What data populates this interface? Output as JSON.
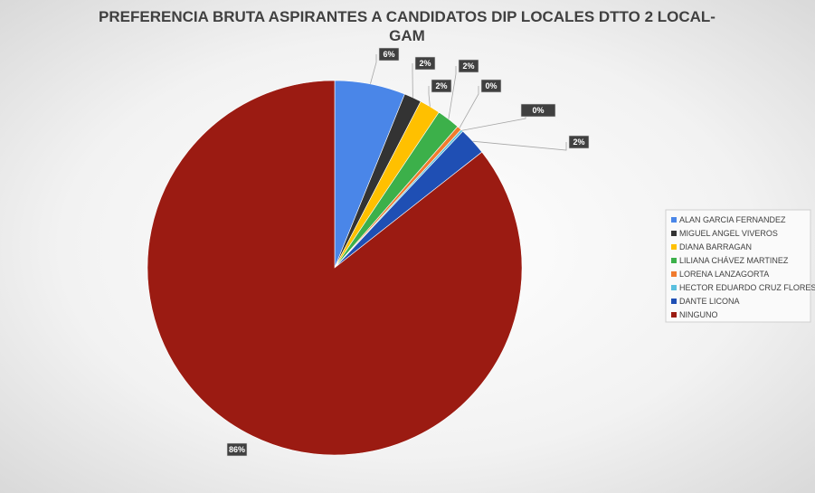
{
  "chart_data": {
    "type": "pie",
    "title": "PREFERENCIA BRUTA ASPIRANTES A CANDIDATOS DIP LOCALES DTTO 2 LOCAL-GAM",
    "categories": [
      "ALAN GARCIA FERNANDEZ",
      "MIGUEL ANGEL VIVEROS",
      "DIANA BARRAGAN",
      "LILIANA CHÁVEZ MARTINEZ",
      "LORENA LANZAGORTA",
      "HECTOR EDUARDO CRUZ FLORES",
      "DANTE LICONA",
      "NINGUNO"
    ],
    "values": [
      6.1,
      1.5,
      1.8,
      2.0,
      0.4,
      0.2,
      2.4,
      85.6
    ],
    "value_labels": [
      "6%",
      "2%",
      "2%",
      "2%",
      "0%",
      "0%",
      "2%",
      "86%"
    ],
    "colors": [
      "#4a86e8",
      "#333333",
      "#ffc000",
      "#3cb04a",
      "#f07b2e",
      "#5bc0de",
      "#1f4fb4",
      "#9b1b12"
    ],
    "legend": "right"
  }
}
